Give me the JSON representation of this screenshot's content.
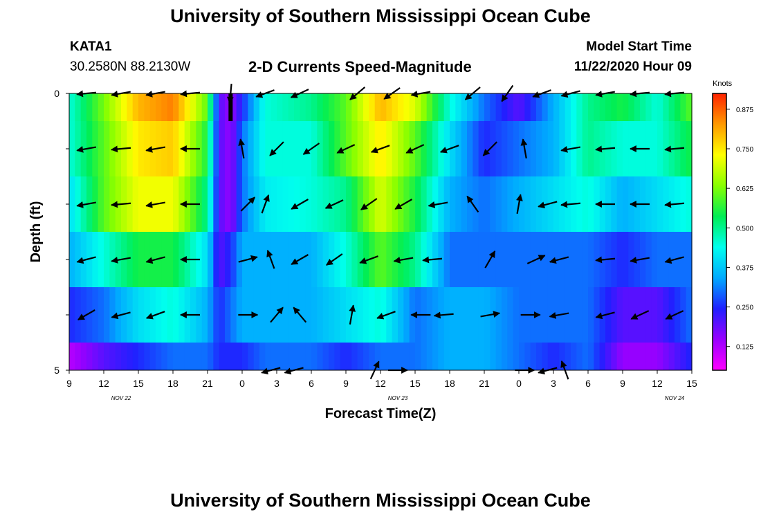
{
  "header": {
    "title": "University of Southern Mississippi Ocean Cube",
    "station": "KATA1",
    "coordinates": "30.2580N 88.2130W",
    "chart_title": "2-D Currents Speed-Magnitude",
    "model_start_label": "Model Start Time",
    "model_start_value": "11/22/2020 Hour 09"
  },
  "footer": {
    "title": "University of Southern Mississippi Ocean Cube"
  },
  "colors": {
    "scale": [
      "#ff00ff",
      "#9900ff",
      "#2020ff",
      "#00aaff",
      "#00ffee",
      "#00ee55",
      "#88ff00",
      "#ffff00",
      "#ff9900",
      "#ff2200"
    ],
    "arrow": "#000000"
  },
  "chart_data": {
    "type": "heatmap",
    "title": "2-D Currents Speed-Magnitude",
    "xlabel": "Forecast Time(Z)",
    "ylabel": "Depth (ft)",
    "ylim": [
      0,
      5
    ],
    "x_range_hours": [
      0,
      54
    ],
    "x_tick_labels": [
      "9",
      "12",
      "15",
      "18",
      "21",
      "0",
      "3",
      "6",
      "9",
      "12",
      "15",
      "18",
      "21",
      "0",
      "3",
      "6",
      "9",
      "12",
      "15"
    ],
    "date_labels": [
      "NOV 22",
      "NOV 23",
      "NOV 24"
    ],
    "y_tick_labels": [
      "0",
      "5"
    ],
    "y_ticks": [
      0,
      1,
      2,
      3,
      4,
      5
    ],
    "colorbar": {
      "label": "Knots",
      "range": [
        0.05,
        0.925
      ],
      "tick_values": [
        0.125,
        0.25,
        0.375,
        0.5,
        0.625,
        0.75,
        0.875
      ],
      "tick_labels": [
        "0.125",
        "0.250",
        "0.375",
        "0.500",
        "0.625",
        "0.750",
        "0.875"
      ]
    },
    "depth_layers": [
      0.25,
      1,
      2,
      3,
      4,
      5
    ],
    "speed_keyframes_hours": [
      0,
      3,
      6,
      9,
      12,
      13,
      14,
      15,
      17,
      21,
      24,
      27,
      30,
      33,
      36,
      39,
      42,
      45,
      48,
      51,
      54
    ],
    "speed_keyframes": [
      [
        0.45,
        0.62,
        0.8,
        0.85,
        0.6,
        0.2,
        0.15,
        0.25,
        0.45,
        0.5,
        0.6,
        0.8,
        0.7,
        0.45,
        0.3,
        0.2,
        0.35,
        0.5,
        0.55,
        0.45,
        0.6
      ],
      [
        0.45,
        0.6,
        0.75,
        0.78,
        0.55,
        0.2,
        0.15,
        0.3,
        0.45,
        0.45,
        0.6,
        0.75,
        0.6,
        0.4,
        0.25,
        0.3,
        0.35,
        0.5,
        0.45,
        0.45,
        0.55
      ],
      [
        0.4,
        0.6,
        0.72,
        0.72,
        0.5,
        0.2,
        0.15,
        0.3,
        0.42,
        0.45,
        0.5,
        0.7,
        0.55,
        0.35,
        0.3,
        0.35,
        0.4,
        0.45,
        0.35,
        0.4,
        0.45
      ],
      [
        0.35,
        0.45,
        0.55,
        0.55,
        0.4,
        0.2,
        0.25,
        0.35,
        0.35,
        0.35,
        0.45,
        0.6,
        0.5,
        0.3,
        0.3,
        0.3,
        0.3,
        0.3,
        0.25,
        0.3,
        0.3
      ],
      [
        0.25,
        0.3,
        0.4,
        0.45,
        0.35,
        0.25,
        0.3,
        0.35,
        0.35,
        0.35,
        0.4,
        0.45,
        0.3,
        0.35,
        0.35,
        0.3,
        0.3,
        0.3,
        0.2,
        0.2,
        0.3
      ],
      [
        0.12,
        0.2,
        0.25,
        0.3,
        0.3,
        0.25,
        0.25,
        0.25,
        0.3,
        0.3,
        0.25,
        0.3,
        0.3,
        0.35,
        0.35,
        0.3,
        0.25,
        0.3,
        0.15,
        0.15,
        0.25
      ]
    ],
    "vectors": [
      {
        "depth": 0,
        "hours": [
          1.5,
          4.5,
          7.5,
          10.5,
          14,
          17,
          20,
          25,
          28,
          30.5,
          35,
          38,
          41,
          43.5,
          46.5,
          49.5,
          52.5
        ],
        "dir_deg": [
          185,
          190,
          190,
          185,
          265,
          200,
          205,
          220,
          215,
          190,
          220,
          235,
          200,
          195,
          190,
          185,
          185
        ]
      },
      {
        "depth": 1,
        "hours": [
          1.5,
          4.5,
          7.5,
          10.5,
          15,
          18,
          21,
          24,
          27,
          30,
          33,
          36.5,
          39.5,
          43.5,
          46.5,
          49.5,
          52.5
        ],
        "dir_deg": [
          190,
          185,
          190,
          180,
          100,
          225,
          215,
          205,
          200,
          205,
          200,
          225,
          100,
          190,
          185,
          180,
          185
        ]
      },
      {
        "depth": 2,
        "hours": [
          1.5,
          4.5,
          7.5,
          10.5,
          15.5,
          17,
          20,
          23,
          26,
          29,
          32,
          35,
          39,
          41.5,
          43.5,
          46.5,
          49.5,
          52.5
        ],
        "dir_deg": [
          190,
          185,
          190,
          180,
          45,
          70,
          210,
          205,
          215,
          210,
          190,
          125,
          80,
          195,
          185,
          180,
          180,
          185
        ]
      },
      {
        "depth": 3,
        "hours": [
          1.5,
          4.5,
          7.5,
          10.5,
          15.5,
          17.5,
          20,
          23,
          26,
          29,
          31.5,
          36.5,
          40.5,
          42.5,
          46.5,
          49.5,
          52.5
        ],
        "dir_deg": [
          195,
          190,
          195,
          180,
          15,
          110,
          210,
          215,
          200,
          190,
          185,
          60,
          25,
          195,
          185,
          190,
          195
        ]
      },
      {
        "depth": 4,
        "hours": [
          1.5,
          4.5,
          7.5,
          10.5,
          15.5,
          18,
          20,
          24.5,
          27.5,
          30.5,
          32.5,
          36.5,
          40,
          42.5,
          46.5,
          49.5,
          52.5
        ],
        "dir_deg": [
          210,
          195,
          200,
          180,
          0,
          50,
          130,
          80,
          200,
          180,
          185,
          10,
          0,
          190,
          195,
          205,
          205
        ]
      },
      {
        "depth": 5,
        "hours": [
          17.5,
          19.5,
          26.5,
          28.5,
          39.5,
          41.5,
          43
        ],
        "dir_deg": [
          195,
          195,
          65,
          0,
          0,
          195,
          110
        ]
      }
    ],
    "markers": [
      {
        "hours": 14,
        "depth_range": [
          0,
          0.5
        ]
      }
    ]
  }
}
